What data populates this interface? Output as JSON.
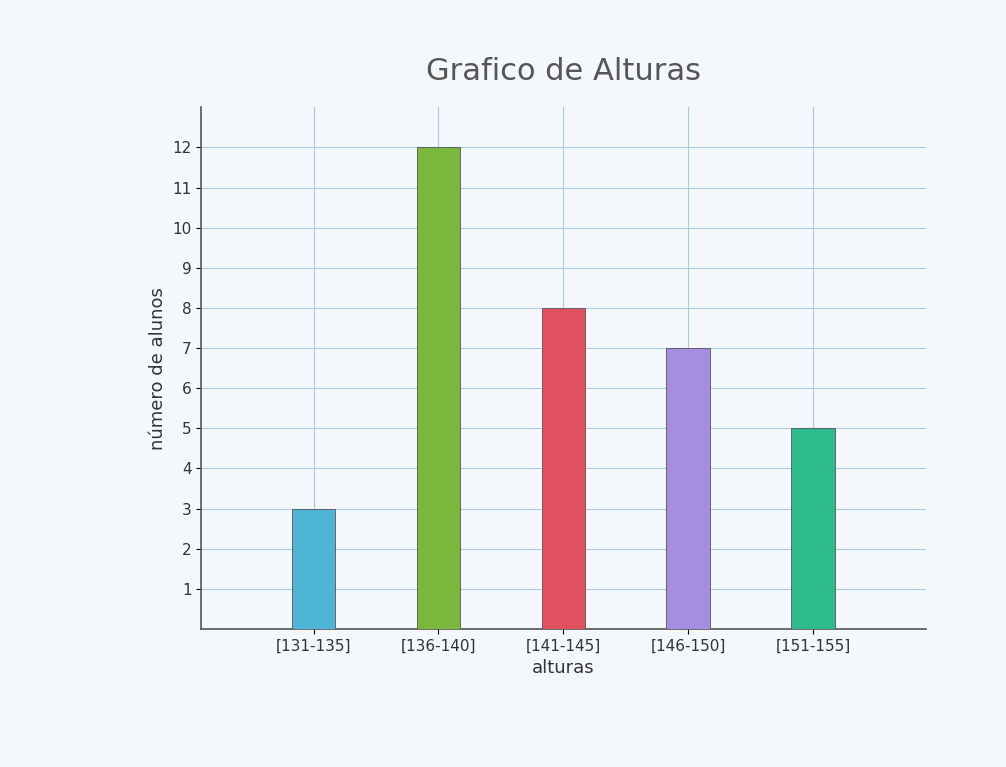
{
  "chart_data": {
    "type": "bar",
    "title": "Grafico de Alturas",
    "y_label": "número de alunos",
    "x_label": "alturas",
    "categories": [
      "[131-135]",
      "[136-140]",
      "[141-145]",
      "[146-150]",
      "[151-155]"
    ],
    "values": [
      3,
      12,
      8,
      7,
      5
    ],
    "colors": [
      "#4db6d6",
      "#79b83a",
      "#e0505e",
      "#a68ddf",
      "#2dbb8c"
    ],
    "ylim": [
      0,
      13
    ],
    "yticks": [
      1,
      2,
      3,
      4,
      5,
      6,
      7,
      8,
      9,
      10,
      11,
      12
    ],
    "grid": true
  }
}
